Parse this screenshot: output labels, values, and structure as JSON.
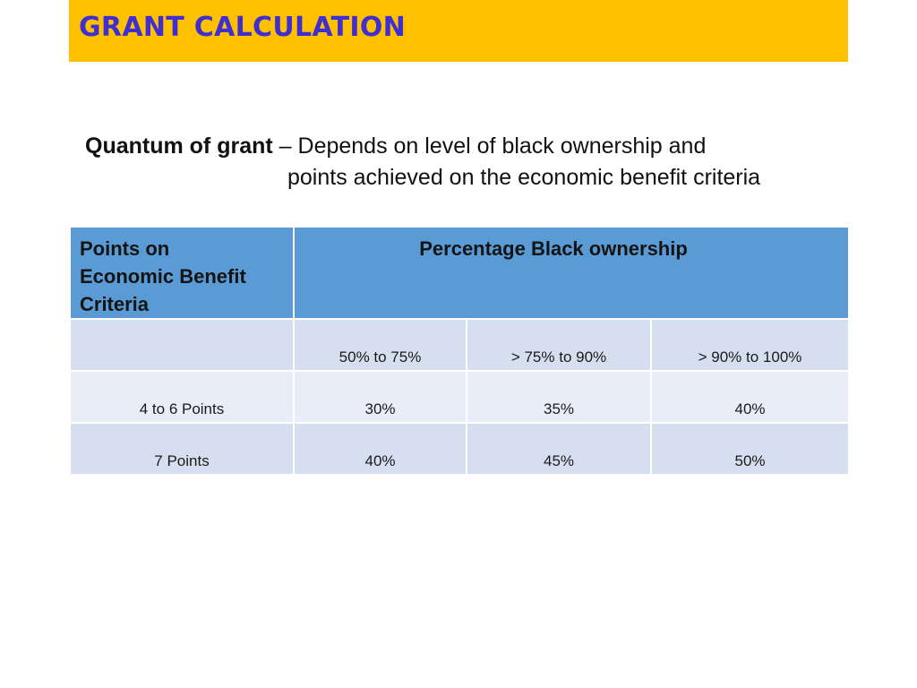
{
  "title": "GRANT CALCULATION",
  "intro": {
    "bold_label": "Quantum of grant",
    "line1_rest": " – Depends on level of black ownership and",
    "line2": "points achieved on the economic benefit criteria"
  },
  "table": {
    "header_left_lines": [
      "Points on",
      "Economic Benefit",
      "Criteria"
    ],
    "header_right": "Percentage Black ownership",
    "subheader": [
      "",
      "50% to 75%",
      "> 75% to 90%",
      "> 90% to 100%"
    ],
    "rows": [
      [
        "4 to 6 Points",
        "30%",
        "35%",
        "40%"
      ],
      [
        "7 Points",
        "40%",
        "45%",
        "50%"
      ]
    ]
  },
  "colors": {
    "title_bg": "#ffc000",
    "title_text": "#3f2fd0",
    "header_bg": "#5b9bd5",
    "row_dark": "#d6dff0",
    "row_light": "#e9edf7"
  }
}
